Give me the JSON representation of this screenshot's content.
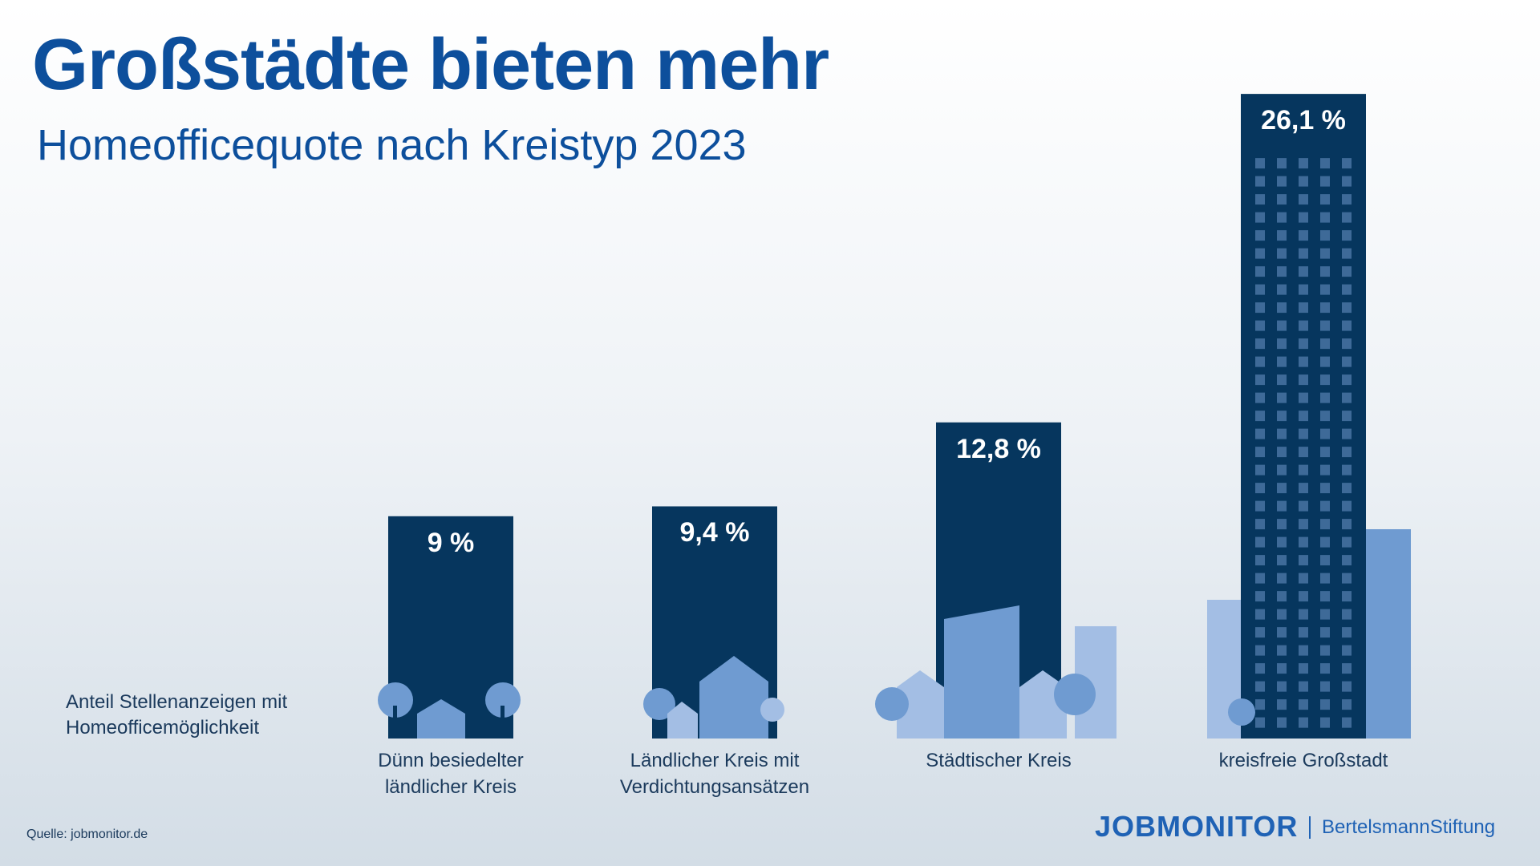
{
  "chart_data": {
    "type": "bar",
    "title": "Großstädte bieten mehr",
    "subtitle": "Homeofficequote nach Kreistyp 2023",
    "y_label": "Anteil Stellenanzeigen mit\nHomeofficemöglichkeit",
    "categories": [
      "Dünn besiedelter\nländlicher Kreis",
      "Ländlicher Kreis mit\nVerdichtungsansätzen",
      "Städtischer Kreis",
      "kreisfreie Großstadt"
    ],
    "values": [
      9,
      9.4,
      12.8,
      26.1
    ],
    "value_labels": [
      "9 %",
      "9,4 %",
      "12,8 %",
      "26,1 %"
    ],
    "color": "#06365e",
    "source": "Quelle: jobmonitor.de",
    "logo": "JOBMONITOR",
    "logo2": "BertelsmannStiftung"
  }
}
